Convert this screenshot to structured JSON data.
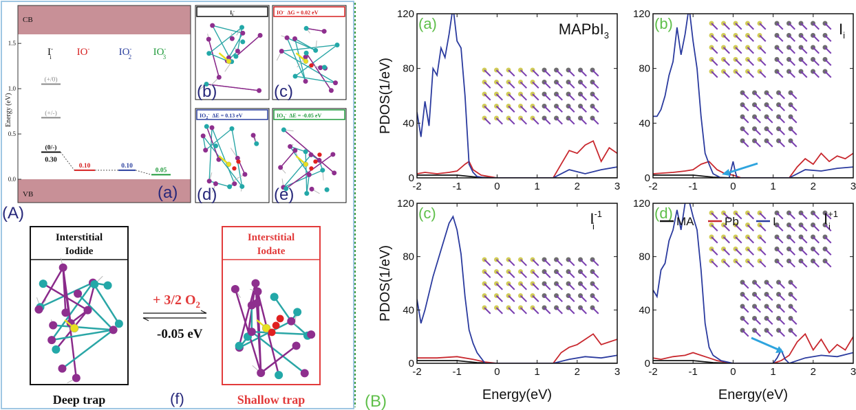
{
  "panel_A": {
    "label": "(A)",
    "energy_diagram": {
      "sublabel": "(a)",
      "cb": "CB",
      "vb": "VB",
      "ylabel": "Energy (eV)",
      "yticks": [
        "0.0",
        "0.5",
        "1.0",
        "1.5"
      ],
      "species": [
        {
          "label": "I",
          "sup": "-",
          "sub": "i",
          "color": "#111111"
        },
        {
          "label": "IO",
          "sup": "-",
          "sub": "",
          "color": "#d61f1f"
        },
        {
          "label": "IO",
          "sup": "-",
          "sub": "2",
          "color": "#2a3f9e"
        },
        {
          "label": "IO",
          "sup": "-",
          "sub": "3",
          "color": "#1f9a3a"
        }
      ],
      "levels": [
        {
          "species": "I_i-",
          "text": "(+/0)",
          "energy": 1.05,
          "color": "#888888"
        },
        {
          "species": "I_i-",
          "text": "(+/-)",
          "energy": 0.68,
          "color": "#888888"
        },
        {
          "species": "I_i-",
          "text": "(0/-)",
          "energy": 0.3,
          "value": "0.30",
          "color": "#111111"
        },
        {
          "species": "IO-",
          "text": "0.10",
          "energy": 0.1,
          "color": "#d61f1f"
        },
        {
          "species": "IO2-",
          "text": "0.10",
          "energy": 0.1,
          "color": "#2a3f9e"
        },
        {
          "species": "IO3-",
          "text": "0.05",
          "energy": 0.05,
          "color": "#1f9a3a"
        }
      ],
      "ylim": [
        0,
        1.65
      ]
    },
    "structures": [
      {
        "title": "I",
        "title_sub": "i",
        "title_sup": "-",
        "energy_text": "",
        "sublabel": "(b)",
        "color": "#111111"
      },
      {
        "title": "IO",
        "title_sub": "",
        "title_sup": "-",
        "energy_text": "ΔG = 0.02 eV",
        "sublabel": "(c)",
        "color": "#d61f1f"
      },
      {
        "title": "IO",
        "title_sub": "2",
        "title_sup": "-",
        "energy_text": "ΔE = 0.13 eV",
        "sublabel": "(d)",
        "color": "#2a3f9e"
      },
      {
        "title": "IO",
        "title_sub": "3",
        "title_sup": "-",
        "energy_text": "ΔE = -0.05 eV",
        "sublabel": "(e)",
        "color": "#1f9a3a"
      }
    ],
    "reaction": {
      "left_title_1": "Interstitial",
      "left_title_2": "Iodide",
      "right_title_1": "Interstitial",
      "right_title_2": "Iodate",
      "reagent": "+ 3/2 O",
      "reagent_sub": "2",
      "energy": "-0.05 eV",
      "left_caption": "Deep trap",
      "right_caption": "Shallow trap",
      "sublabel": "(f)"
    }
  },
  "panel_B": {
    "label": "(B)",
    "legend": [
      "MA",
      "Pb",
      "I"
    ]
  },
  "colors": {
    "MA": "#111111",
    "Pb": "#c8272d",
    "I": "#2a3a9e",
    "sublabel_green": "#5fbf4a",
    "panel_label": "#27287a",
    "cb_fill": "#c89097",
    "arrow": "#2ea4de",
    "divider": "#3a9a3a"
  },
  "chart_data": [
    {
      "type": "line",
      "panel": "(a)",
      "annotation": "MAPbI",
      "annotation_sub": "3",
      "annotation_sup": "",
      "xlabel": "",
      "ylabel": "PDOS(1/eV)",
      "xlim": [
        -2,
        3
      ],
      "ylim": [
        0,
        120
      ],
      "xticks": [
        "-2",
        "-1",
        "0",
        "1",
        "2",
        "3"
      ],
      "yticks": [
        "0",
        "40",
        "80",
        "120"
      ],
      "series": [
        {
          "name": "MA",
          "x": [
            -2,
            -1.5,
            -1,
            -0.5,
            0,
            3
          ],
          "y": [
            2,
            2,
            2,
            0.5,
            0,
            0
          ]
        },
        {
          "name": "Pb",
          "x": [
            -2,
            -1.8,
            -1.5,
            -1.2,
            -1,
            -0.8,
            -0.7,
            -0.6,
            -0.4,
            0,
            1.4,
            1.6,
            1.8,
            2.0,
            2.2,
            2.4,
            2.6,
            2.8,
            3
          ],
          "y": [
            3,
            4,
            3,
            4,
            5,
            10,
            12,
            6,
            2,
            0,
            0,
            10,
            20,
            18,
            24,
            27,
            12,
            22,
            18
          ]
        },
        {
          "name": "I",
          "x": [
            -2,
            -1.9,
            -1.8,
            -1.7,
            -1.6,
            -1.5,
            -1.4,
            -1.3,
            -1.2,
            -1.1,
            -1.0,
            -0.9,
            -0.8,
            -0.7,
            -0.6,
            -0.5,
            -0.3,
            0,
            1.4,
            1.8,
            2.2,
            2.6,
            3
          ],
          "y": [
            48,
            30,
            56,
            38,
            80,
            75,
            95,
            88,
            105,
            125,
            100,
            95,
            60,
            10,
            4,
            1,
            0,
            0,
            0,
            6,
            3,
            6,
            8
          ]
        }
      ]
    },
    {
      "type": "line",
      "panel": "(b)",
      "annotation": "I",
      "annotation_sub": "i",
      "annotation_sup": "",
      "xlabel": "",
      "ylabel": "",
      "xlim": [
        -2,
        3
      ],
      "ylim": [
        0,
        120
      ],
      "xticks": [
        "-2",
        "-1",
        "0",
        "1",
        "2",
        "3"
      ],
      "yticks": [
        "0",
        "40",
        "80",
        "120"
      ],
      "series": [
        {
          "name": "MA",
          "x": [
            -2,
            -1.5,
            -1,
            -0.5,
            0,
            3
          ],
          "y": [
            2,
            2,
            2,
            0.5,
            0,
            0
          ]
        },
        {
          "name": "Pb",
          "x": [
            -2,
            -1.5,
            -1.2,
            -1,
            -0.8,
            -0.6,
            -0.4,
            -0.2,
            0,
            0.2,
            1.4,
            1.6,
            1.8,
            2.0,
            2.2,
            2.4,
            2.6,
            2.8,
            3
          ],
          "y": [
            3,
            4,
            5,
            6,
            10,
            12,
            6,
            3,
            2,
            0,
            0,
            8,
            14,
            10,
            18,
            12,
            16,
            14,
            18
          ]
        },
        {
          "name": "I",
          "x": [
            -2,
            -1.9,
            -1.8,
            -1.7,
            -1.6,
            -1.5,
            -1.4,
            -1.3,
            -1.2,
            -1.1,
            -1.0,
            -0.9,
            -0.8,
            -0.7,
            -0.6,
            -0.5,
            -0.3,
            -0.1,
            0,
            0.05,
            0.1,
            1.4,
            1.8,
            2.2,
            2.6,
            3
          ],
          "y": [
            45,
            45,
            50,
            60,
            75,
            85,
            110,
            90,
            105,
            125,
            100,
            80,
            45,
            18,
            10,
            3,
            0,
            0,
            12,
            5,
            0,
            0,
            6,
            5,
            7,
            8
          ]
        }
      ]
    },
    {
      "type": "line",
      "panel": "(c)",
      "annotation": "I",
      "annotation_sub": "i",
      "annotation_sup": "-1",
      "xlabel": "Energy(eV)",
      "ylabel": "PDOS(1/eV)",
      "xlim": [
        -2,
        3
      ],
      "ylim": [
        0,
        120
      ],
      "xticks": [
        "-2",
        "-1",
        "0",
        "1",
        "2",
        "3"
      ],
      "yticks": [
        "0",
        "40",
        "80",
        "120"
      ],
      "series": [
        {
          "name": "MA",
          "x": [
            -2,
            -1.5,
            -1,
            -0.5,
            0,
            3
          ],
          "y": [
            2,
            2,
            2,
            0.5,
            0,
            0
          ]
        },
        {
          "name": "Pb",
          "x": [
            -2,
            -1.5,
            -1,
            -0.6,
            -0.3,
            0,
            1.4,
            1.6,
            1.8,
            2.0,
            2.2,
            2.4,
            2.6,
            2.8,
            3
          ],
          "y": [
            4,
            4,
            5,
            3,
            1,
            0,
            0,
            8,
            12,
            14,
            18,
            22,
            14,
            16,
            18
          ]
        },
        {
          "name": "I",
          "x": [
            -2,
            -1.9,
            -1.8,
            -1.6,
            -1.4,
            -1.2,
            -1.1,
            -1.0,
            -0.9,
            -0.8,
            -0.7,
            -0.6,
            -0.5,
            -0.3,
            0,
            1.4,
            1.8,
            2.2,
            2.6,
            3
          ],
          "y": [
            48,
            30,
            40,
            65,
            85,
            105,
            110,
            100,
            82,
            50,
            25,
            15,
            8,
            0,
            0,
            0,
            3,
            5,
            4,
            6
          ]
        }
      ]
    },
    {
      "type": "line",
      "panel": "(d)",
      "annotation": "I",
      "annotation_sub": "i",
      "annotation_sup": "+1",
      "xlabel": "Energy(eV)",
      "ylabel": "",
      "xlim": [
        -2,
        3
      ],
      "ylim": [
        0,
        120
      ],
      "xticks": [
        "-2",
        "-1",
        "0",
        "1",
        "2",
        "3"
      ],
      "yticks": [
        "0",
        "40",
        "80",
        "120"
      ],
      "series": [
        {
          "name": "MA",
          "x": [
            -2,
            -1.5,
            -1,
            -0.5,
            0,
            3
          ],
          "y": [
            2,
            2,
            2,
            0.5,
            0,
            0
          ]
        },
        {
          "name": "Pb",
          "x": [
            -2,
            -1.8,
            -1.5,
            -1.2,
            -1,
            -0.8,
            -0.6,
            -0.4,
            -0.2,
            0,
            1.0,
            1.2,
            1.4,
            1.6,
            1.8,
            2.0,
            2.2,
            2.4,
            2.6,
            2.8,
            3
          ],
          "y": [
            4,
            3,
            5,
            6,
            8,
            6,
            4,
            2,
            1,
            0,
            0,
            2,
            6,
            16,
            22,
            10,
            18,
            8,
            14,
            10,
            20
          ]
        },
        {
          "name": "I",
          "x": [
            -2,
            -1.9,
            -1.8,
            -1.7,
            -1.6,
            -1.5,
            -1.4,
            -1.3,
            -1.2,
            -1.1,
            -1.0,
            -0.9,
            -0.8,
            -0.7,
            -0.6,
            -0.5,
            -0.3,
            0,
            1.0,
            1.1,
            1.2,
            1.3,
            1.4,
            1.8,
            2.2,
            2.6,
            3
          ],
          "y": [
            55,
            50,
            70,
            75,
            92,
            100,
            115,
            100,
            120,
            122,
            110,
            100,
            70,
            30,
            12,
            6,
            2,
            0,
            0,
            4,
            10,
            3,
            0,
            4,
            6,
            5,
            8
          ]
        }
      ]
    }
  ]
}
